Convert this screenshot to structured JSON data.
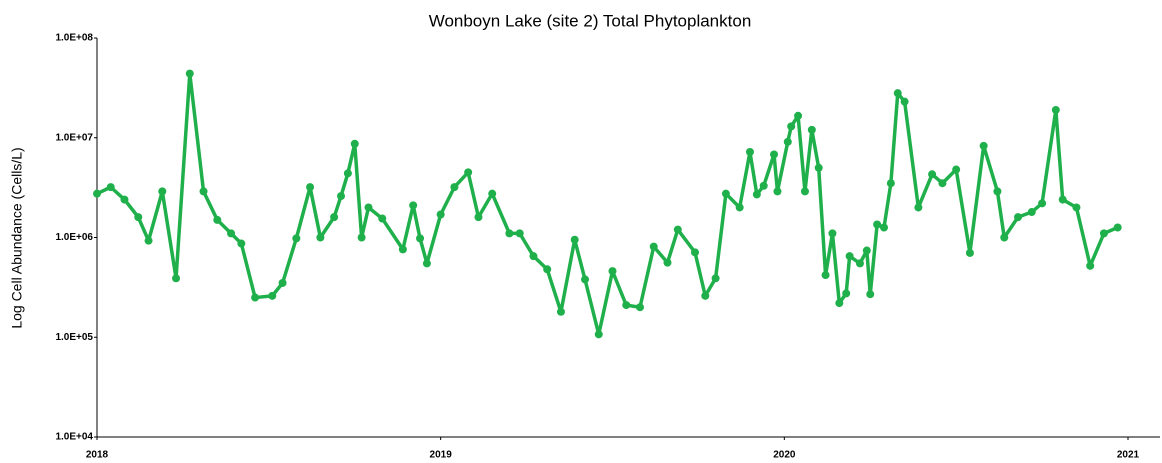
{
  "chart_data": {
    "type": "line",
    "title": "Wonboyn Lake (site 2) Total Phytoplankton",
    "y_label": "Log Cell Abundance (Cells/L)",
    "log_y": true,
    "grid": false,
    "xlim": [
      2018,
      2021
    ],
    "xticks": [
      2018,
      2019,
      2020,
      2021
    ],
    "ylim": [
      10000,
      100000000
    ],
    "yticks": [
      {
        "value": 10000,
        "label": "1.0E+04"
      },
      {
        "value": 100000,
        "label": "1.0E+05"
      },
      {
        "value": 1000000,
        "label": "1.0E+06"
      },
      {
        "value": 10000000,
        "label": "1.0E+07"
      },
      {
        "value": 100000000,
        "label": "1.0E+08"
      }
    ],
    "series": [
      {
        "name": "Total Phytoplankton",
        "color": "#1fb04b",
        "x": [
          2018.0,
          2018.04,
          2018.08,
          2018.12,
          2018.15,
          2018.19,
          2018.23,
          2018.27,
          2018.31,
          2018.35,
          2018.39,
          2018.42,
          2018.46,
          2018.51,
          2018.54,
          2018.58,
          2018.62,
          2018.65,
          2018.69,
          2018.71,
          2018.73,
          2018.75,
          2018.77,
          2018.79,
          2018.83,
          2018.89,
          2018.92,
          2018.94,
          2018.96,
          2019.0,
          2019.04,
          2019.08,
          2019.11,
          2019.15,
          2019.2,
          2019.23,
          2019.27,
          2019.31,
          2019.35,
          2019.39,
          2019.42,
          2019.46,
          2019.5,
          2019.54,
          2019.58,
          2019.62,
          2019.66,
          2019.69,
          2019.74,
          2019.77,
          2019.8,
          2019.83,
          2019.87,
          2019.9,
          2019.92,
          2019.94,
          2019.97,
          2019.98,
          2020.01,
          2020.02,
          2020.04,
          2020.06,
          2020.08,
          2020.1,
          2020.12,
          2020.14,
          2020.16,
          2020.18,
          2020.19,
          2020.22,
          2020.24,
          2020.25,
          2020.27,
          2020.29,
          2020.31,
          2020.33,
          2020.35,
          2020.39,
          2020.43,
          2020.46,
          2020.5,
          2020.54,
          2020.58,
          2020.62,
          2020.64,
          2020.68,
          2020.72,
          2020.75,
          2020.79,
          2020.81,
          2020.85,
          2020.89,
          2020.93,
          2020.97
        ],
        "values": [
          2750000,
          3200000,
          2400000,
          1600000,
          930000,
          2900000,
          390000,
          44000000,
          2900000,
          1500000,
          1100000,
          870000,
          250000,
          260000,
          350000,
          980000,
          3200000,
          1000000,
          1600000,
          2600000,
          4400000,
          8700000,
          1000000,
          2000000,
          1550000,
          760000,
          2100000,
          980000,
          550000,
          1700000,
          3200000,
          4500000,
          1600000,
          2750000,
          1100000,
          1100000,
          650000,
          480000,
          180000,
          950000,
          380000,
          107000,
          460000,
          210000,
          200000,
          810000,
          560000,
          1200000,
          710000,
          260000,
          390000,
          2750000,
          2000000,
          7200000,
          2700000,
          3300000,
          6800000,
          2900000,
          9100000,
          13000000,
          16600000,
          2900000,
          12000000,
          5000000,
          420000,
          1100000,
          220000,
          275000,
          650000,
          550000,
          740000,
          270000,
          1350000,
          1260000,
          3500000,
          28000000,
          23000000,
          2000000,
          4300000,
          3500000,
          4800000,
          700000,
          8300000,
          2900000,
          1000000,
          1600000,
          1800000,
          2200000,
          19000000,
          2400000,
          2000000,
          520000,
          1100000,
          1260000
        ]
      }
    ]
  }
}
